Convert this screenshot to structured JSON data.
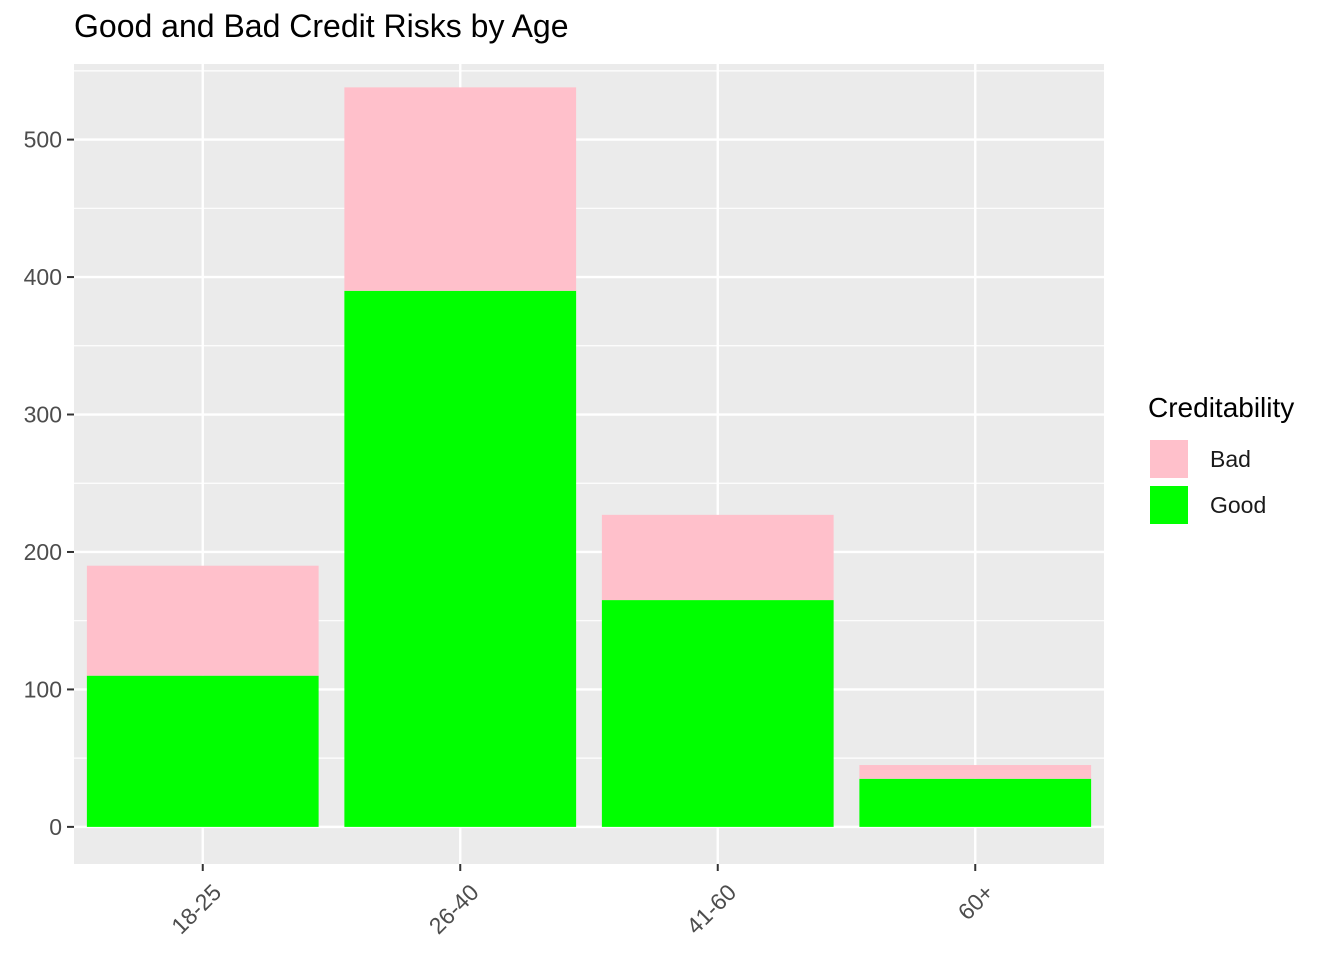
{
  "chart_data": {
    "type": "bar",
    "stacked": true,
    "title": "Good and Bad Credit Risks by Age",
    "xlabel": "",
    "ylabel": "",
    "categories": [
      "18-25",
      "26-40",
      "41-60",
      "60+"
    ],
    "series": [
      {
        "name": "Good",
        "values": [
          110,
          390,
          165,
          35
        ],
        "color": "#00ff00"
      },
      {
        "name": "Bad",
        "values": [
          80,
          148,
          62,
          10
        ],
        "color": "#ffc0cb"
      }
    ],
    "ylim": [
      -27,
      555
    ],
    "yticks": [
      0,
      100,
      200,
      300,
      400,
      500
    ],
    "ytick_labels": [
      "0",
      "100",
      "200",
      "300",
      "400",
      "500"
    ],
    "grid": true,
    "panel_background": "#ebebeb",
    "grid_color": "#ffffff",
    "x_tick_rotation": 45,
    "legend": {
      "title": "Creditability",
      "position": "right",
      "items": [
        {
          "label": "Bad",
          "color": "#ffc0cb"
        },
        {
          "label": "Good",
          "color": "#00ff00"
        }
      ]
    }
  }
}
